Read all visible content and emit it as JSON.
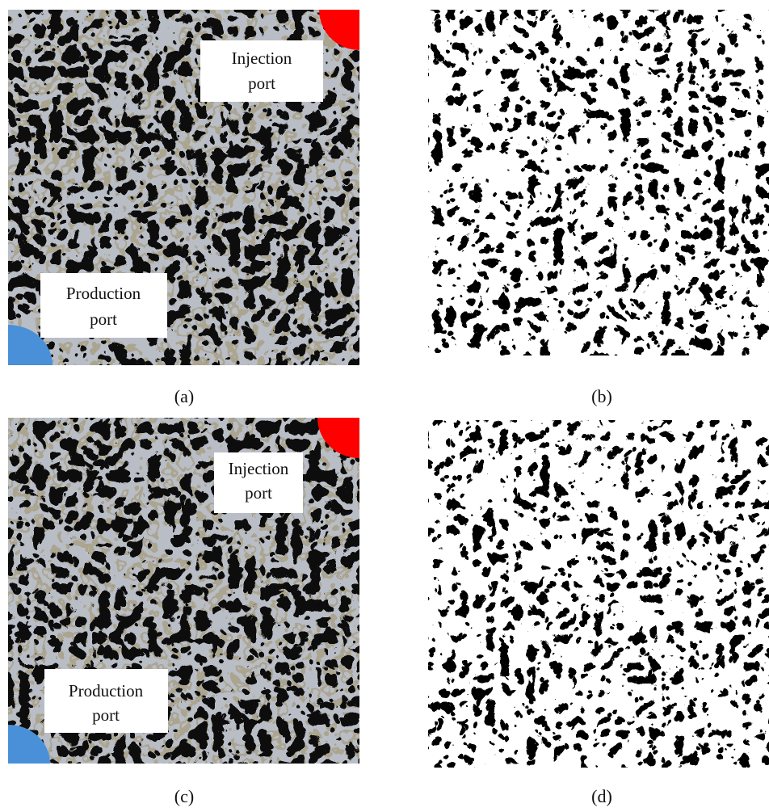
{
  "panels": [
    {
      "label": "(a)",
      "annotations": [
        {
          "lines": [
            "Injection",
            "port"
          ]
        },
        {
          "lines": [
            "Production",
            "port"
          ]
        }
      ]
    },
    {
      "label": "(b)"
    },
    {
      "label": "(c)",
      "annotations": [
        {
          "lines": [
            "Injection",
            "port"
          ]
        },
        {
          "lines": [
            "Production",
            "port"
          ]
        }
      ]
    },
    {
      "label": "(d)"
    }
  ]
}
